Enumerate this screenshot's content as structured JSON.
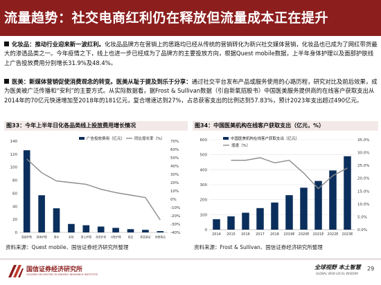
{
  "title": "流量趋势：社交电商红利仍在释放但流量成本正在提升",
  "bullets": [
    {
      "lead": "化妆品：推动行业迎来新一波红利。",
      "text": "化妆品品牌方在营销上的思路均已经从传统的营销转化为新兴社交媒体营销，化妆品也已成为了网红带货最大的渗透品类之一。今年疫情之下，线上也进一步已经成为了品牌方的主要投放方向，根据Quest mobile数据，上半年身体护理以及面部护肤线上广告投放费用分别增长31.9%及48.4%。"
    },
    {
      "lead": "医美：新媒体营销促使消费观念的转变。医美从耻于提及到乐于分享：",
      "text": "通过社交平台发布产品或服务使用的心路历程，研究对比及前后效果，成为医美被广泛传播和“安利”的主要方式。从实际数据看，据Frost & Sullivan数据（引自新氧招股书）中国医美服务提供商的在线客户获取支出从2014年的70亿元快速增加至2018年的181亿元，复合增速达到27%，占总获客支出的比例达到57.83%，预计2023年支出超过490亿元。"
    }
  ],
  "chart1": {
    "heading": "图33：今年上半年日化各品类线上投放费用增长情况",
    "source": "资料来源：Quest mobile、国信证券经济研究所整理",
    "chart_data": {
      "type": "bar",
      "categories": [
        "面部护肤",
        "身体护理",
        "香水",
        "彩妆",
        "男士护理",
        "洗发护发",
        "口腔护理",
        "纸品",
        "家居清洁",
        "衣物清洁"
      ],
      "series": [
        {
          "name": "广告投放费用（亿元）",
          "type": "bar",
          "axis": "left",
          "color": "#0b2f5c",
          "values": [
            126,
            57,
            37,
            13,
            11,
            9,
            7,
            5,
            4,
            2
          ]
        },
        {
          "name": "同比增长率（%）",
          "type": "line",
          "axis": "right",
          "color": "#8a8a8a",
          "values": [
            48.4,
            31.9,
            22,
            20,
            18,
            12,
            8,
            5,
            2,
            -25
          ]
        }
      ],
      "y_left": {
        "min": 0,
        "max": 140,
        "ticks": [
          0,
          20,
          40,
          60,
          80,
          100,
          120,
          140
        ]
      },
      "y_right": {
        "min": -40,
        "max": 70,
        "ticks": [
          "-40%",
          "-30%",
          "-20%",
          "-10%",
          "0%",
          "10%",
          "20%",
          "30%",
          "40%",
          "50%",
          "60%",
          "70%"
        ]
      },
      "legend_position": "top"
    }
  },
  "chart2": {
    "heading": "图34：中国医美机构在线客户获取支出（亿元，%）",
    "source": "资料来源：Frost & Sullivan、国信证券经济研究所整理",
    "chart_data": {
      "type": "bar",
      "categories": [
        "2014",
        "2015",
        "2016",
        "2017",
        "2018",
        "2019E",
        "2020E",
        "2021E",
        "2022E",
        "2023E"
      ],
      "series": [
        {
          "name": "中国医美机构在线客户获取支出（亿元）",
          "type": "bar",
          "axis": "left",
          "color": "#0b2f5c",
          "values": [
            70,
            89,
            113,
            144,
            181,
            230,
            280,
            325,
            395,
            490
          ]
        },
        {
          "name": "增速（%）",
          "type": "line",
          "axis": "right",
          "color": "#8a8a8a",
          "values": [
            null,
            27,
            27,
            28,
            26,
            27,
            22,
            16,
            21,
            24
          ]
        }
      ],
      "y_left": {
        "min": 0,
        "max": 600,
        "ticks": [
          0,
          100,
          200,
          300,
          400,
          500,
          600
        ]
      },
      "y_right": {
        "min": 0,
        "max": 35,
        "ticks": [
          "0.0%",
          "5.0%",
          "10.0%",
          "15.0%",
          "20.0%",
          "25.0%",
          "30.0%",
          "35.0%"
        ]
      },
      "legend_position": "top-left"
    }
  },
  "footer": {
    "logo_name": "国信证券经济研究所",
    "logo_en": "GUOSEN SECURITIES ECONOMIC RESEARCH INSTITUTE",
    "slogan": "全球视野 本土智慧",
    "slogan_en": "GLOBAL VIEW    LOCAL WISDOM",
    "page_number": "29"
  },
  "colors": {
    "brand": "#8c1e1e",
    "bar": "#0b2f5c",
    "line": "#8a8a8a"
  }
}
